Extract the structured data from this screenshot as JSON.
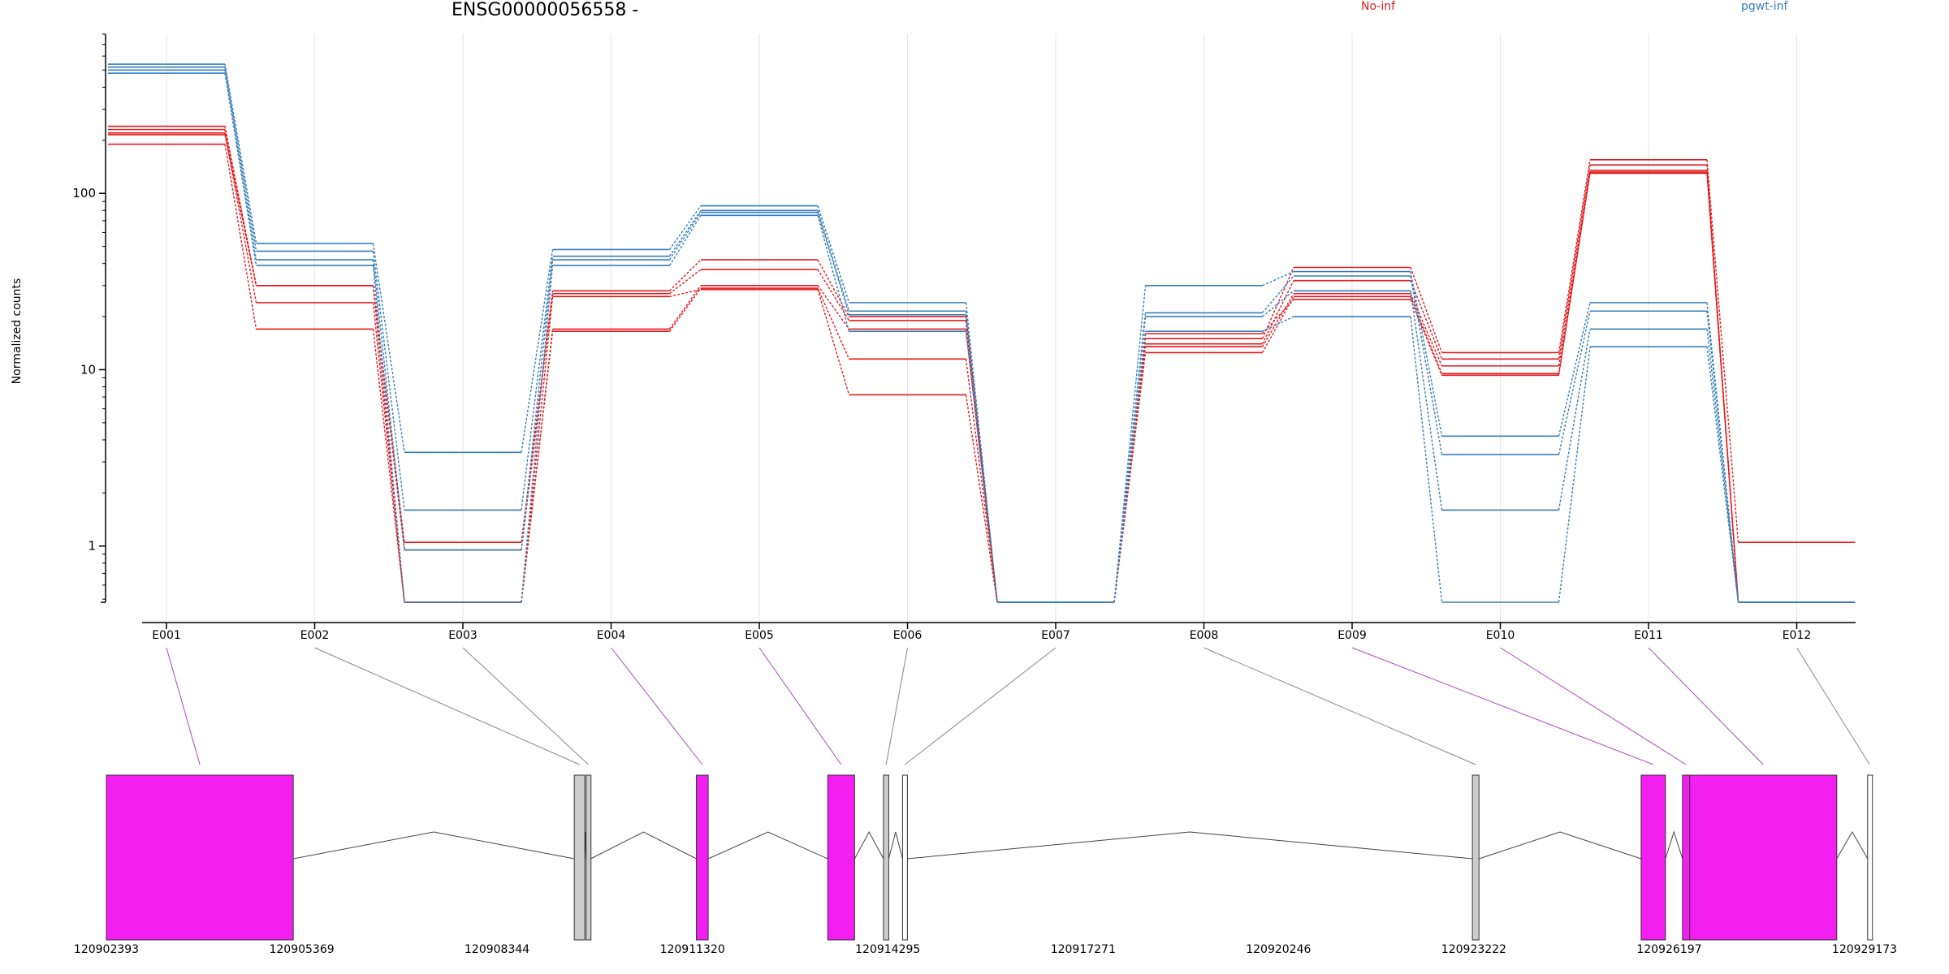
{
  "chart_data": {
    "type": "line",
    "title": "ENSG00000056558 -",
    "ylabel": "Normalized counts",
    "xlabel": "",
    "yscale": "log",
    "ylim": [
      0.48,
      800
    ],
    "yticks": [
      1,
      10,
      100
    ],
    "ytick_labels": [
      "1",
      "10",
      "100"
    ],
    "zero_value": 0.48,
    "categories": [
      "E001",
      "E002",
      "E003",
      "E004",
      "E005",
      "E006",
      "E007",
      "E008",
      "E009",
      "E010",
      "E011",
      "E012"
    ],
    "grid": "vertical",
    "legend": [
      {
        "label": "No-inf",
        "color": "#e31a1c"
      },
      {
        "label": "pgwt-inf",
        "color": "#377eb8"
      }
    ],
    "series": [
      {
        "group": "No-inf",
        "color": "#e31a1c",
        "values": [
          240,
          30,
          1.05,
          28,
          42,
          20,
          0.48,
          15,
          38,
          12.5,
          155,
          1.05
        ]
      },
      {
        "group": "No-inf",
        "color": "#e31a1c",
        "values": [
          230,
          30,
          0.95,
          27,
          37,
          19,
          0.48,
          14,
          32,
          11.5,
          145,
          0.48
        ]
      },
      {
        "group": "No-inf",
        "color": "#e31a1c",
        "values": [
          220,
          24,
          0.48,
          17,
          30,
          17,
          0.48,
          13.5,
          27,
          10.5,
          135,
          0.48
        ]
      },
      {
        "group": "No-inf",
        "color": "#e31a1c",
        "values": [
          190,
          17,
          0.48,
          16.5,
          29,
          11.5,
          0.48,
          12.5,
          26,
          9.5,
          130,
          0.48
        ]
      },
      {
        "group": "No-inf",
        "color": "#e31a1c",
        "values": [
          215,
          30,
          0.48,
          26,
          28.5,
          7.2,
          0.48,
          16,
          25,
          9.3,
          132,
          0.48
        ]
      },
      {
        "group": "pgwt-inf",
        "color": "#377eb8",
        "values": [
          540,
          52,
          3.4,
          48,
          85,
          24,
          0.48,
          30,
          36,
          4.2,
          24,
          0.48
        ]
      },
      {
        "group": "pgwt-inf",
        "color": "#377eb8",
        "values": [
          520,
          47,
          1.6,
          44,
          80,
          21.5,
          0.48,
          21,
          34,
          3.3,
          21.5,
          0.48
        ]
      },
      {
        "group": "pgwt-inf",
        "color": "#377eb8",
        "values": [
          500,
          42,
          0.95,
          42,
          78,
          20.5,
          0.48,
          20,
          28,
          1.6,
          17,
          0.48
        ]
      },
      {
        "group": "pgwt-inf",
        "color": "#377eb8",
        "values": [
          480,
          39,
          0.48,
          39,
          75,
          16.5,
          0.48,
          16.5,
          20,
          0.48,
          13.5,
          0.48
        ]
      }
    ],
    "gene_model": {
      "positions": [
        "120902393",
        "120905369",
        "120908344",
        "120911320",
        "120914295",
        "120917271",
        "120920246",
        "120923222",
        "120926197",
        "120929173"
      ],
      "exons": [
        {
          "bin": "E001",
          "start": 120902393,
          "end": 120905240,
          "color": "#f21ff0"
        },
        {
          "bin": "E002",
          "start": 120909520,
          "end": 120909680,
          "color": "#cccccc"
        },
        {
          "bin": "E003",
          "start": 120909700,
          "end": 120909770,
          "color": "#cccccc"
        },
        {
          "bin": "E004",
          "start": 120911380,
          "end": 120911560,
          "color": "#f21ff0"
        },
        {
          "bin": "E005",
          "start": 120913380,
          "end": 120913790,
          "color": "#f21ff0"
        },
        {
          "bin": "E006",
          "start": 120914230,
          "end": 120914310,
          "color": "#cccccc"
        },
        {
          "bin": "E007",
          "start": 120914520,
          "end": 120914590,
          "color": "#ffffff"
        },
        {
          "bin": "E008",
          "start": 120923200,
          "end": 120923300,
          "color": "#cccccc"
        },
        {
          "bin": "E009",
          "start": 120925770,
          "end": 120926140,
          "color": "#f21ff0"
        },
        {
          "bin": "E010",
          "start": 120926400,
          "end": 120926510,
          "color": "#f21ff0"
        },
        {
          "bin": "E011",
          "start": 120926510,
          "end": 120928750,
          "color": "#f21ff0"
        },
        {
          "bin": "E012",
          "start": 120929220,
          "end": 120929280,
          "color": "#ffffff"
        }
      ],
      "highlight_bins": [
        "E001",
        "E004",
        "E005",
        "E009",
        "E010",
        "E011"
      ],
      "highlight_color": "#b044c4"
    }
  }
}
